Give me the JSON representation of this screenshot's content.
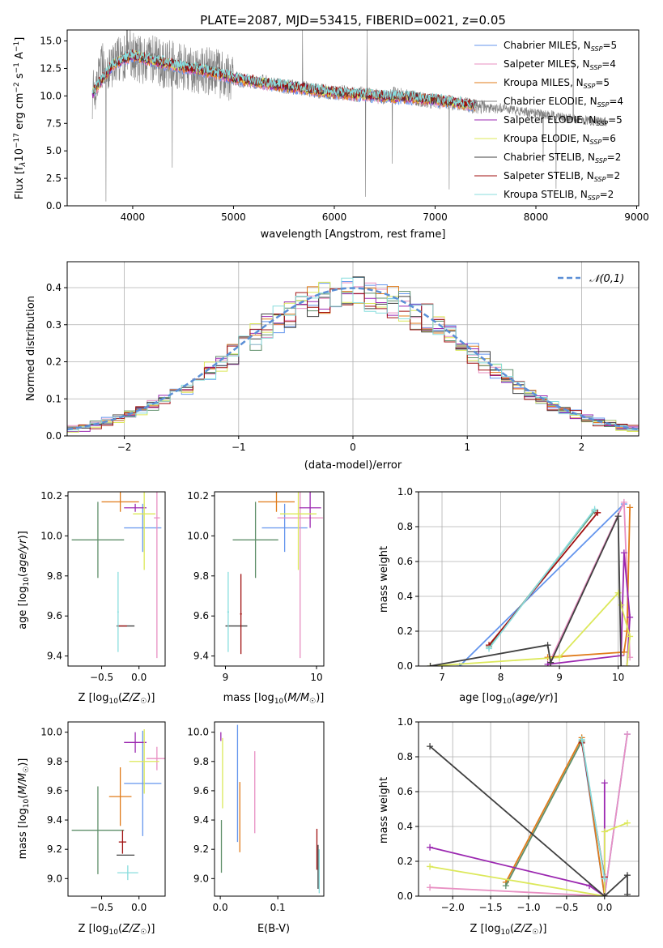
{
  "figure": {
    "title": "PLATE=2087, MJD=53415, FIBERID=0021, z=0.05"
  },
  "series_colors": [
    "#6495ed",
    "#e88fc2",
    "#e07b1a",
    "#808080",
    "#9b27b0",
    "#dce85a",
    "#404040",
    "#a01010",
    "#88dddd"
  ],
  "legend_entries": [
    "Chabrier MILES, N_SSP=5",
    "Salpeter MILES, N_SSP=4",
    "Kroupa MILES, N_SSP=5",
    "Chabrier ELODIE, N_SSP=4",
    "Salpeter ELODIE, N_SSP=5",
    "Kroupa ELODIE, N_SSP=6",
    "Chabrier STELIB, N_SSP=2",
    "Salpeter STELIB, N_SSP=2",
    "Kroupa STELIB, N_SSP=2"
  ],
  "chart_data": [
    {
      "id": "spectrum",
      "type": "line",
      "title": "PLATE=2087, MJD=53415, FIBERID=0021, z=0.05",
      "xlabel": "wavelength [Angstrom, rest frame]",
      "ylabel": "Flux [f_λ 10^−17 erg cm^−2 s^−1 A^−1]",
      "xlim": [
        3350,
        9020
      ],
      "ylim": [
        0,
        16
      ],
      "xticks": [
        4000,
        5000,
        6000,
        7000,
        8000,
        9000
      ],
      "yticks": [
        0.0,
        2.5,
        5.0,
        7.5,
        10.0,
        12.5,
        15.0
      ],
      "grid": false,
      "legend": "upper right",
      "data_spectrum": {
        "x": [
          3600,
          3650,
          3700,
          3750,
          3800,
          3850,
          3900,
          3950,
          4000,
          4100,
          4200,
          4300,
          4400,
          4500,
          4600,
          4700,
          4800,
          4900,
          5000,
          5100,
          5200,
          5300,
          5400,
          5500,
          5600,
          5700,
          5800,
          5900,
          6000,
          6100,
          6200,
          6300,
          6400,
          6500,
          6600,
          6700,
          6800,
          6900,
          7000,
          7100,
          7200,
          7300,
          7400,
          7500,
          7600,
          7700,
          7800,
          7900,
          8000,
          8100,
          8200,
          8300,
          8400,
          8500,
          8600,
          8700
        ],
        "y": [
          10.0,
          11.5,
          13.0,
          12.5,
          12.8,
          13.5,
          13.2,
          14.5,
          13.6,
          13.2,
          13.4,
          12.8,
          13.0,
          12.6,
          12.5,
          12.2,
          12.3,
          11.8,
          11.6,
          11.4,
          11.2,
          11.3,
          11.0,
          10.9,
          10.8,
          10.7,
          10.5,
          10.4,
          10.3,
          10.3,
          10.1,
          10.2,
          10.0,
          9.9,
          10.2,
          10.0,
          9.8,
          9.6,
          9.5,
          9.4,
          9.3,
          9.2,
          9.0,
          8.9,
          8.8,
          9.0,
          8.6,
          8.5,
          8.4,
          8.3,
          8.2,
          8.0,
          7.9,
          7.8,
          7.7,
          7.6
        ]
      },
      "model_spectrum": {
        "x": [
          3600,
          3700,
          3800,
          3900,
          4000,
          4100,
          4200,
          4300,
          4400,
          4500,
          4600,
          4700,
          4800,
          4900,
          5000,
          5200,
          5400,
          5600,
          5800,
          6000,
          6200,
          6400,
          6600,
          6800,
          7000,
          7200,
          7400
        ],
        "y": [
          10.2,
          11.5,
          12.8,
          13.3,
          13.7,
          13.4,
          13.2,
          13.0,
          12.8,
          12.6,
          12.5,
          12.3,
          12.1,
          11.9,
          11.6,
          11.3,
          11.0,
          10.8,
          10.5,
          10.3,
          10.1,
          10.0,
          9.9,
          9.8,
          9.6,
          9.4,
          9.1
        ]
      }
    },
    {
      "id": "residual_histogram",
      "type": "line",
      "xlabel": "(data-model)/error",
      "ylabel": "Normed distribution",
      "xlim": [
        -2.5,
        2.5
      ],
      "ylim": [
        0,
        0.47
      ],
      "xticks": [
        -2,
        -1,
        0,
        1,
        2
      ],
      "yticks": [
        0.0,
        0.1,
        0.2,
        0.3,
        0.4
      ],
      "grid": true,
      "legend": "upper right",
      "legend_label": "𝒩(0,1)",
      "bin_width": 0.1,
      "normal_curve": {
        "mean": 0,
        "std": 1
      }
    },
    {
      "id": "age_vs_Z",
      "type": "scatter",
      "xlabel": "Z [log₁₀(Z/Z☉)]",
      "ylabel": "age  [log₁₀(age/yr)]",
      "xlim": [
        -0.95,
        0.35
      ],
      "ylim": [
        9.35,
        10.22
      ],
      "xticks": [
        -0.5,
        0.0
      ],
      "yticks": [
        9.4,
        9.6,
        9.8,
        10.0,
        10.2
      ],
      "grid": false,
      "points": [
        {
          "x": 0.05,
          "y": 10.04,
          "xerr": 0.25,
          "yerr": 0.12
        },
        {
          "x": 0.24,
          "y": 10.09,
          "xerr": 0.04,
          "yerr": 0.7
        },
        {
          "x": -0.25,
          "y": 10.17,
          "xerr": 0.25,
          "yerr": 0.05
        },
        {
          "x": -0.55,
          "y": 9.98,
          "xerr": 0.35,
          "yerr": 0.19
        },
        {
          "x": -0.05,
          "y": 10.14,
          "xerr": 0.15,
          "yerr": 0.02
        },
        {
          "x": 0.07,
          "y": 10.11,
          "xerr": 0.15,
          "yerr": 0.28
        },
        {
          "x": -0.18,
          "y": 9.55,
          "xerr": 0.12,
          "yerr": 0.0
        },
        {
          "x": -0.22,
          "y": 9.55,
          "xerr": 0.06,
          "yerr": 0.0
        },
        {
          "x": -0.28,
          "y": 9.62,
          "xerr": 0.01,
          "yerr": 0.2
        }
      ]
    },
    {
      "id": "age_vs_mass",
      "type": "scatter",
      "xlabel": "mass [log₁₀(M/M☉)]",
      "ylabel": "",
      "xlim": [
        8.88,
        10.08
      ],
      "ylim": [
        9.35,
        10.22
      ],
      "xticks": [
        9,
        10
      ],
      "yticks": [
        9.4,
        9.6,
        9.8,
        10.0,
        10.2
      ],
      "grid": false,
      "points": [
        {
          "x": 9.65,
          "y": 10.04,
          "xerr": 0.25,
          "yerr": 0.12
        },
        {
          "x": 9.82,
          "y": 10.09,
          "xerr": 0.25,
          "yerr": 0.7
        },
        {
          "x": 9.56,
          "y": 10.17,
          "xerr": 0.2,
          "yerr": 0.05
        },
        {
          "x": 9.33,
          "y": 9.98,
          "xerr": 0.25,
          "yerr": 0.19
        },
        {
          "x": 9.93,
          "y": 10.14,
          "xerr": 0.12,
          "yerr": 0.1
        },
        {
          "x": 9.8,
          "y": 10.11,
          "xerr": 0.2,
          "yerr": 0.28
        },
        {
          "x": 9.12,
          "y": 9.55,
          "xerr": 0.12,
          "yerr": 0.0
        },
        {
          "x": 9.17,
          "y": 9.61,
          "xerr": 0.01,
          "yerr": 0.2
        },
        {
          "x": 9.03,
          "y": 9.62,
          "xerr": 0.01,
          "yerr": 0.2
        }
      ]
    },
    {
      "id": "weight_vs_age",
      "type": "line",
      "xlabel": "age  [log₁₀(age/yr)]",
      "ylabel": "mass weight",
      "xlim": [
        6.6,
        10.35
      ],
      "ylim": [
        0,
        1.0
      ],
      "xticks": [
        7,
        8,
        9,
        10
      ],
      "yticks": [
        0.0,
        0.2,
        0.4,
        0.6,
        0.8,
        1.0
      ],
      "grid": true,
      "series": [
        {
          "x": [
            7.3,
            10.1
          ],
          "y": [
            0.0,
            0.93
          ]
        },
        {
          "x": [
            8.8,
            10.1,
            10.2
          ],
          "y": [
            0.0,
            0.94,
            0.05
          ]
        },
        {
          "x": [
            8.8,
            10.1,
            10.15,
            10.2
          ],
          "y": [
            0.05,
            0.08,
            0.2,
            0.91
          ]
        },
        {
          "x": [
            7.8,
            9.6
          ],
          "y": [
            0.11,
            0.89
          ]
        },
        {
          "x": [
            8.8,
            10.05,
            10.1,
            10.2,
            10.15
          ],
          "y": [
            0.01,
            0.06,
            0.65,
            0.28,
            0.0
          ]
        },
        {
          "x": [
            6.8,
            9.0,
            10.0,
            10.05,
            10.2,
            10.15
          ],
          "y": [
            0.0,
            0.05,
            0.42,
            0.35,
            0.17,
            0.0
          ]
        },
        {
          "x": [
            6.8,
            8.8,
            8.85,
            10.0,
            10.05
          ],
          "y": [
            0.0,
            0.12,
            0.02,
            0.86,
            0.0
          ]
        },
        {
          "x": [
            7.8,
            9.65
          ],
          "y": [
            0.12,
            0.88
          ]
        },
        {
          "x": [
            7.8,
            9.6
          ],
          "y": [
            0.1,
            0.9
          ]
        }
      ]
    },
    {
      "id": "mass_vs_Z",
      "type": "scatter",
      "xlabel": "Z [log₁₀(Z/Z☉)]",
      "ylabel": "mass [log₁₀(M/M☉)]",
      "xlim": [
        -0.95,
        0.35
      ],
      "ylim": [
        8.88,
        10.07
      ],
      "xticks": [
        -0.5,
        0.0
      ],
      "yticks": [
        9.0,
        9.2,
        9.4,
        9.6,
        9.8,
        10.0
      ],
      "grid": false,
      "points": [
        {
          "x": 0.05,
          "y": 9.65,
          "xerr": 0.25,
          "yerr": 0.36
        },
        {
          "x": 0.24,
          "y": 9.82,
          "xerr": 0.14,
          "yerr": 0.08
        },
        {
          "x": -0.25,
          "y": 9.56,
          "xerr": 0.15,
          "yerr": 0.2
        },
        {
          "x": -0.55,
          "y": 9.33,
          "xerr": 0.35,
          "yerr": 0.3
        },
        {
          "x": -0.05,
          "y": 9.93,
          "xerr": 0.15,
          "yerr": 0.07
        },
        {
          "x": 0.07,
          "y": 9.8,
          "xerr": 0.2,
          "yerr": 0.22
        },
        {
          "x": -0.18,
          "y": 9.16,
          "xerr": 0.12,
          "yerr": 0.0
        },
        {
          "x": -0.22,
          "y": 9.25,
          "xerr": 0.05,
          "yerr": 0.08
        },
        {
          "x": -0.15,
          "y": 9.04,
          "xerr": 0.14,
          "yerr": 0.05
        }
      ]
    },
    {
      "id": "mass_vs_ebv",
      "type": "scatter",
      "xlabel": "E(B-V)",
      "ylabel": "",
      "xlim": [
        -0.01,
        0.18
      ],
      "ylim": [
        8.88,
        10.07
      ],
      "xticks": [
        0.0,
        0.1
      ],
      "yticks": [
        9.0,
        9.2,
        9.4,
        9.6,
        9.8,
        10.0
      ],
      "grid": false,
      "points": [
        {
          "x": 0.03,
          "y": 9.65,
          "xerr": 0,
          "yerr": 0.4
        },
        {
          "x": 0.06,
          "y": 9.59,
          "xerr": 0,
          "yerr": 0.28
        },
        {
          "x": 0.034,
          "y": 9.42,
          "xerr": 0,
          "yerr": 0.24
        },
        {
          "x": 0.002,
          "y": 9.22,
          "xerr": 0,
          "yerr": 0.18
        },
        {
          "x": 0.001,
          "y": 9.97,
          "xerr": 0,
          "yerr": 0.03
        },
        {
          "x": 0.004,
          "y": 9.72,
          "xerr": 0,
          "yerr": 0.24
        },
        {
          "x": 0.17,
          "y": 9.08,
          "xerr": 0,
          "yerr": 0.15
        },
        {
          "x": 0.168,
          "y": 9.2,
          "xerr": 0,
          "yerr": 0.14
        },
        {
          "x": 0.172,
          "y": 9.05,
          "xerr": 0,
          "yerr": 0.15
        }
      ]
    },
    {
      "id": "weight_vs_Z",
      "type": "line",
      "xlabel": "Z [log₁₀(Z/Z☉)]",
      "ylabel": "mass weight",
      "xlim": [
        -2.45,
        0.45
      ],
      "ylim": [
        0,
        1.0
      ],
      "xticks": [
        -2.0,
        -1.5,
        -1.0,
        -0.5,
        0.0
      ],
      "yticks": [
        0.0,
        0.2,
        0.4,
        0.6,
        0.8,
        1.0
      ],
      "grid": true,
      "series": [
        {
          "x": [
            -0.3,
            0.0,
            0.3
          ],
          "y": [
            0.89,
            0.0,
            0.93
          ]
        },
        {
          "x": [
            -2.3,
            0.0,
            0.3
          ],
          "y": [
            0.05,
            0.0,
            0.93
          ]
        },
        {
          "x": [
            -1.3,
            -0.3,
            0.0
          ],
          "y": [
            0.08,
            0.91,
            0.0
          ]
        },
        {
          "x": [
            -1.3,
            -0.3
          ],
          "y": [
            0.06,
            0.89
          ]
        },
        {
          "x": [
            -2.3,
            -0.2,
            0.0,
            0.0
          ],
          "y": [
            0.28,
            0.06,
            0.0,
            0.65
          ]
        },
        {
          "x": [
            -2.3,
            0.0,
            0.0,
            0.3
          ],
          "y": [
            0.17,
            0.0,
            0.37,
            0.42
          ]
        },
        {
          "x": [
            -2.3,
            0.0,
            0.3,
            0.3
          ],
          "y": [
            0.86,
            0.0,
            0.12,
            0.01
          ]
        },
        {
          "x": [
            -0.3,
            0.0
          ],
          "y": [
            0.88,
            0.11
          ]
        },
        {
          "x": [
            -0.3,
            0.0
          ],
          "y": [
            0.9,
            0.1
          ]
        }
      ]
    }
  ]
}
